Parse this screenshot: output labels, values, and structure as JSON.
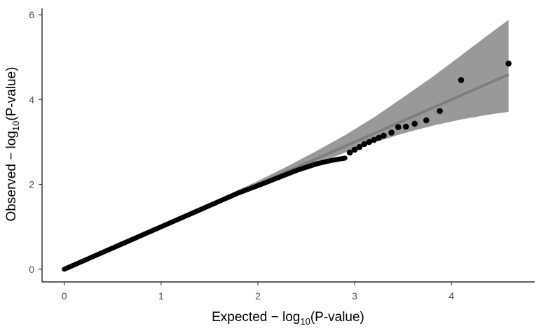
{
  "chart_data": {
    "type": "scatter",
    "xlabel": {
      "main": "Expected  − log",
      "sub": "10",
      "tail": "(P-value)"
    },
    "ylabel": {
      "main": "Observed  − log",
      "sub": "10",
      "tail": "(P-value)"
    },
    "x_ticks": [
      "0",
      "1",
      "2",
      "3",
      "4"
    ],
    "y_ticks": [
      "0",
      "2",
      "4",
      "6"
    ],
    "xlim": [
      -0.23,
      4.86
    ],
    "ylim": [
      -0.3,
      6.15
    ],
    "grid": false,
    "legend": "none",
    "reference_line": {
      "x": [
        0,
        4.59
      ],
      "y": [
        0,
        4.59
      ],
      "color": "#7f7f7f"
    },
    "confidence_band": {
      "color": "#999999",
      "x": [
        0,
        0.5,
        1.0,
        1.5,
        2.0,
        2.3,
        2.6,
        2.9,
        3.2,
        3.5,
        3.8,
        4.1,
        4.4,
        4.59
      ],
      "lower": [
        0,
        0.49,
        0.98,
        1.47,
        1.94,
        2.22,
        2.49,
        2.75,
        2.99,
        3.2,
        3.38,
        3.53,
        3.65,
        3.71
      ],
      "upper": [
        0.02,
        0.52,
        1.03,
        1.55,
        2.08,
        2.42,
        2.78,
        3.16,
        3.58,
        4.05,
        4.53,
        5.04,
        5.56,
        5.88
      ]
    },
    "points_dense_curve": {
      "x": [
        0,
        0.5,
        1.0,
        1.5,
        1.8,
        2.0,
        2.2,
        2.4,
        2.6,
        2.75,
        2.85,
        2.9
      ],
      "y": [
        0,
        0.5,
        1.0,
        1.5,
        1.8,
        1.97,
        2.15,
        2.33,
        2.48,
        2.56,
        2.6,
        2.62
      ]
    },
    "points": {
      "color": "#000000",
      "x": [
        2.95,
        3.0,
        3.05,
        3.1,
        3.15,
        3.2,
        3.25,
        3.3,
        3.38,
        3.45,
        3.53,
        3.62,
        3.74,
        3.88,
        4.1,
        4.59
      ],
      "y": [
        2.75,
        2.82,
        2.88,
        2.95,
        3.0,
        3.05,
        3.1,
        3.15,
        3.22,
        3.35,
        3.36,
        3.43,
        3.51,
        3.73,
        4.46,
        4.85
      ]
    }
  }
}
